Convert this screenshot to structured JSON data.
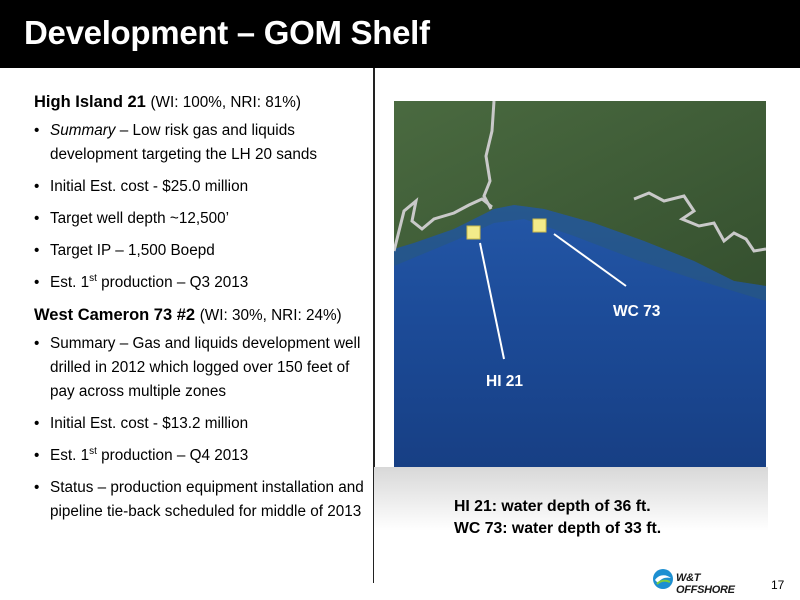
{
  "title": "Development – GOM Shelf",
  "left": {
    "hi21": {
      "name": "High Island 21",
      "interest": "(WI: 100%, NRI: 81%)",
      "summary_label": "Summary",
      "summary_text": " – Low risk gas and liquids development targeting the LH 20 sands",
      "cost": "Initial Est. cost - $25.0 million",
      "depth": "Target well depth ~12,500’",
      "ip": "Target IP – 1,500 Boepd",
      "prod_pre": "Est. 1",
      "prod_sup": "st",
      "prod_post": " production – Q3 2013"
    },
    "wc73": {
      "name": "West Cameron 73 #2",
      "interest": "(WI: 30%, NRI: 24%)",
      "summary": "Summary – Gas and liquids development well drilled in 2012 which logged over 150 feet of pay across multiple zones",
      "cost": "Initial Est. cost - $13.2 million",
      "prod_pre": "Est. 1",
      "prod_sup": "st",
      "prod_post": " production – Q4 2013",
      "status": "Status – production equipment installation and pipeline tie-back scheduled for middle of 2013"
    }
  },
  "map": {
    "label_hi21": "HI 21",
    "label_wc73": "WC 73"
  },
  "caption": {
    "line1": "HI 21: water depth of 36 ft.",
    "line2": "WC 73: water depth of 33 ft."
  },
  "logo": {
    "text": "W&T OFFSHORE",
    "icon": "wave-logo-icon"
  },
  "page_number": "17",
  "colors": {
    "title_bg": "#000000",
    "ocean": "#1e4f9c",
    "land": "#3d5a35",
    "marker": "#f3eb8a"
  }
}
